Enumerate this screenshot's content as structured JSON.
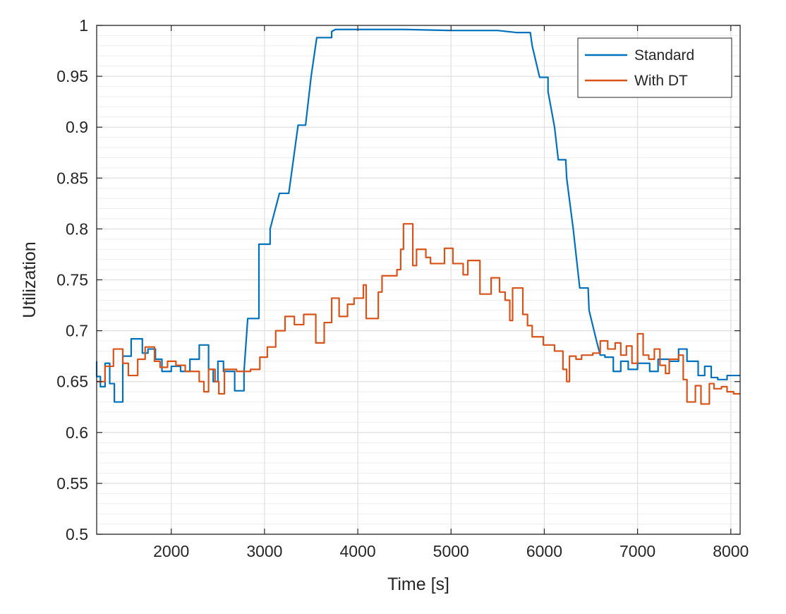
{
  "chart_data": {
    "type": "line",
    "xlabel": "Time [s]",
    "ylabel": "Utilization",
    "xlim": [
      1200,
      8100
    ],
    "ylim": [
      0.5,
      1.0
    ],
    "xticks": [
      2000,
      3000,
      4000,
      5000,
      6000,
      7000,
      8000
    ],
    "xtick_labels": [
      "2000",
      "3000",
      "4000",
      "5000",
      "6000",
      "7000",
      "8000"
    ],
    "yticks": [
      0.5,
      0.55,
      0.6,
      0.65,
      0.7,
      0.75,
      0.8,
      0.85,
      0.9,
      0.95,
      1.0
    ],
    "ytick_labels": [
      "0.5",
      "0.55",
      "0.6",
      "0.65",
      "0.7",
      "0.75",
      "0.8",
      "0.85",
      "0.9",
      "0.95",
      "1"
    ],
    "grid": true,
    "minor_grid": true,
    "legend_position": "top-right",
    "series": [
      {
        "name": "Standard",
        "color": "#0072BD",
        "points": [
          [
            1200,
            0.67
          ],
          [
            1200,
            0.655
          ],
          [
            1240,
            0.655
          ],
          [
            1240,
            0.645
          ],
          [
            1290,
            0.645
          ],
          [
            1290,
            0.668
          ],
          [
            1340,
            0.668
          ],
          [
            1340,
            0.648
          ],
          [
            1390,
            0.648
          ],
          [
            1390,
            0.63
          ],
          [
            1480,
            0.63
          ],
          [
            1480,
            0.675
          ],
          [
            1570,
            0.675
          ],
          [
            1570,
            0.692
          ],
          [
            1690,
            0.692
          ],
          [
            1690,
            0.678
          ],
          [
            1750,
            0.678
          ],
          [
            1750,
            0.682
          ],
          [
            1830,
            0.682
          ],
          [
            1830,
            0.672
          ],
          [
            1900,
            0.672
          ],
          [
            1900,
            0.66
          ],
          [
            2000,
            0.66
          ],
          [
            2000,
            0.665
          ],
          [
            2100,
            0.665
          ],
          [
            2100,
            0.66
          ],
          [
            2200,
            0.66
          ],
          [
            2200,
            0.672
          ],
          [
            2300,
            0.672
          ],
          [
            2300,
            0.686
          ],
          [
            2400,
            0.686
          ],
          [
            2400,
            0.662
          ],
          [
            2450,
            0.662
          ],
          [
            2450,
            0.65
          ],
          [
            2500,
            0.65
          ],
          [
            2500,
            0.67
          ],
          [
            2560,
            0.67
          ],
          [
            2560,
            0.66
          ],
          [
            2680,
            0.66
          ],
          [
            2680,
            0.641
          ],
          [
            2780,
            0.641
          ],
          [
            2780,
            0.66
          ],
          [
            2820,
            0.712
          ],
          [
            2940,
            0.712
          ],
          [
            2940,
            0.785
          ],
          [
            3060,
            0.785
          ],
          [
            3060,
            0.8
          ],
          [
            3160,
            0.835
          ],
          [
            3260,
            0.835
          ],
          [
            3290,
            0.855
          ],
          [
            3360,
            0.902
          ],
          [
            3440,
            0.902
          ],
          [
            3500,
            0.95
          ],
          [
            3560,
            0.988
          ],
          [
            3720,
            0.988
          ],
          [
            3720,
            0.994
          ],
          [
            3760,
            0.996
          ],
          [
            4500,
            0.996
          ],
          [
            5000,
            0.995
          ],
          [
            5500,
            0.995
          ],
          [
            5700,
            0.993
          ],
          [
            5850,
            0.993
          ],
          [
            5870,
            0.98
          ],
          [
            5950,
            0.949
          ],
          [
            6040,
            0.949
          ],
          [
            6040,
            0.935
          ],
          [
            6110,
            0.9
          ],
          [
            6150,
            0.868
          ],
          [
            6230,
            0.868
          ],
          [
            6240,
            0.85
          ],
          [
            6310,
            0.8
          ],
          [
            6380,
            0.742
          ],
          [
            6470,
            0.742
          ],
          [
            6480,
            0.72
          ],
          [
            6560,
            0.69
          ],
          [
            6600,
            0.676
          ],
          [
            6650,
            0.676
          ],
          [
            6650,
            0.674
          ],
          [
            6740,
            0.674
          ],
          [
            6740,
            0.66
          ],
          [
            6820,
            0.66
          ],
          [
            6820,
            0.67
          ],
          [
            6900,
            0.67
          ],
          [
            6900,
            0.662
          ],
          [
            7000,
            0.662
          ],
          [
            7000,
            0.668
          ],
          [
            7130,
            0.668
          ],
          [
            7130,
            0.66
          ],
          [
            7220,
            0.66
          ],
          [
            7220,
            0.672
          ],
          [
            7340,
            0.672
          ],
          [
            7340,
            0.67
          ],
          [
            7440,
            0.67
          ],
          [
            7440,
            0.682
          ],
          [
            7530,
            0.682
          ],
          [
            7530,
            0.67
          ],
          [
            7650,
            0.67
          ],
          [
            7650,
            0.656
          ],
          [
            7720,
            0.656
          ],
          [
            7720,
            0.665
          ],
          [
            7790,
            0.665
          ],
          [
            7790,
            0.654
          ],
          [
            7860,
            0.654
          ],
          [
            7860,
            0.652
          ],
          [
            7960,
            0.652
          ],
          [
            7960,
            0.656
          ],
          [
            8100,
            0.656
          ]
        ]
      },
      {
        "name": "With DT",
        "color": "#D95319",
        "points": [
          [
            1200,
            0.65
          ],
          [
            1290,
            0.65
          ],
          [
            1290,
            0.665
          ],
          [
            1380,
            0.665
          ],
          [
            1380,
            0.682
          ],
          [
            1480,
            0.682
          ],
          [
            1480,
            0.668
          ],
          [
            1540,
            0.668
          ],
          [
            1540,
            0.656
          ],
          [
            1640,
            0.656
          ],
          [
            1640,
            0.672
          ],
          [
            1720,
            0.672
          ],
          [
            1720,
            0.684
          ],
          [
            1820,
            0.684
          ],
          [
            1820,
            0.67
          ],
          [
            1880,
            0.67
          ],
          [
            1880,
            0.664
          ],
          [
            1960,
            0.664
          ],
          [
            1960,
            0.67
          ],
          [
            2050,
            0.67
          ],
          [
            2050,
            0.666
          ],
          [
            2150,
            0.666
          ],
          [
            2150,
            0.66
          ],
          [
            2300,
            0.66
          ],
          [
            2300,
            0.65
          ],
          [
            2350,
            0.65
          ],
          [
            2350,
            0.64
          ],
          [
            2400,
            0.64
          ],
          [
            2400,
            0.662
          ],
          [
            2470,
            0.662
          ],
          [
            2470,
            0.65
          ],
          [
            2510,
            0.65
          ],
          [
            2510,
            0.638
          ],
          [
            2570,
            0.638
          ],
          [
            2570,
            0.662
          ],
          [
            2700,
            0.662
          ],
          [
            2700,
            0.66
          ],
          [
            2850,
            0.66
          ],
          [
            2850,
            0.662
          ],
          [
            2950,
            0.662
          ],
          [
            2950,
            0.674
          ],
          [
            3030,
            0.674
          ],
          [
            3030,
            0.684
          ],
          [
            3120,
            0.684
          ],
          [
            3120,
            0.7
          ],
          [
            3220,
            0.7
          ],
          [
            3220,
            0.714
          ],
          [
            3320,
            0.714
          ],
          [
            3320,
            0.706
          ],
          [
            3420,
            0.706
          ],
          [
            3420,
            0.716
          ],
          [
            3550,
            0.716
          ],
          [
            3550,
            0.688
          ],
          [
            3640,
            0.688
          ],
          [
            3640,
            0.708
          ],
          [
            3720,
            0.708
          ],
          [
            3720,
            0.732
          ],
          [
            3800,
            0.732
          ],
          [
            3800,
            0.714
          ],
          [
            3890,
            0.714
          ],
          [
            3890,
            0.726
          ],
          [
            3960,
            0.726
          ],
          [
            3960,
            0.732
          ],
          [
            4060,
            0.732
          ],
          [
            4060,
            0.745
          ],
          [
            4090,
            0.745
          ],
          [
            4090,
            0.712
          ],
          [
            4220,
            0.712
          ],
          [
            4220,
            0.738
          ],
          [
            4260,
            0.738
          ],
          [
            4260,
            0.754
          ],
          [
            4420,
            0.754
          ],
          [
            4420,
            0.76
          ],
          [
            4460,
            0.76
          ],
          [
            4460,
            0.78
          ],
          [
            4490,
            0.78
          ],
          [
            4490,
            0.805
          ],
          [
            4590,
            0.805
          ],
          [
            4590,
            0.764
          ],
          [
            4630,
            0.764
          ],
          [
            4630,
            0.78
          ],
          [
            4730,
            0.78
          ],
          [
            4730,
            0.772
          ],
          [
            4780,
            0.772
          ],
          [
            4780,
            0.766
          ],
          [
            4930,
            0.766
          ],
          [
            4930,
            0.781
          ],
          [
            5020,
            0.781
          ],
          [
            5020,
            0.766
          ],
          [
            5130,
            0.766
          ],
          [
            5130,
            0.755
          ],
          [
            5180,
            0.755
          ],
          [
            5180,
            0.769
          ],
          [
            5310,
            0.769
          ],
          [
            5310,
            0.736
          ],
          [
            5430,
            0.736
          ],
          [
            5430,
            0.752
          ],
          [
            5520,
            0.752
          ],
          [
            5520,
            0.738
          ],
          [
            5580,
            0.738
          ],
          [
            5580,
            0.73
          ],
          [
            5630,
            0.73
          ],
          [
            5630,
            0.71
          ],
          [
            5660,
            0.71
          ],
          [
            5660,
            0.742
          ],
          [
            5770,
            0.742
          ],
          [
            5770,
            0.716
          ],
          [
            5820,
            0.716
          ],
          [
            5820,
            0.705
          ],
          [
            5870,
            0.705
          ],
          [
            5870,
            0.694
          ],
          [
            5990,
            0.694
          ],
          [
            5990,
            0.686
          ],
          [
            6110,
            0.686
          ],
          [
            6110,
            0.68
          ],
          [
            6200,
            0.68
          ],
          [
            6200,
            0.662
          ],
          [
            6240,
            0.662
          ],
          [
            6240,
            0.65
          ],
          [
            6270,
            0.65
          ],
          [
            6270,
            0.675
          ],
          [
            6340,
            0.675
          ],
          [
            6340,
            0.672
          ],
          [
            6400,
            0.672
          ],
          [
            6400,
            0.676
          ],
          [
            6520,
            0.676
          ],
          [
            6520,
            0.678
          ],
          [
            6600,
            0.678
          ],
          [
            6600,
            0.69
          ],
          [
            6680,
            0.69
          ],
          [
            6680,
            0.682
          ],
          [
            6760,
            0.682
          ],
          [
            6760,
            0.688
          ],
          [
            6820,
            0.688
          ],
          [
            6820,
            0.676
          ],
          [
            6880,
            0.676
          ],
          [
            6880,
            0.685
          ],
          [
            6940,
            0.685
          ],
          [
            6940,
            0.668
          ],
          [
            7000,
            0.668
          ],
          [
            7000,
            0.697
          ],
          [
            7060,
            0.697
          ],
          [
            7060,
            0.676
          ],
          [
            7120,
            0.676
          ],
          [
            7120,
            0.672
          ],
          [
            7180,
            0.672
          ],
          [
            7180,
            0.682
          ],
          [
            7240,
            0.682
          ],
          [
            7240,
            0.666
          ],
          [
            7300,
            0.666
          ],
          [
            7300,
            0.658
          ],
          [
            7340,
            0.658
          ],
          [
            7340,
            0.672
          ],
          [
            7440,
            0.672
          ],
          [
            7440,
            0.676
          ],
          [
            7490,
            0.676
          ],
          [
            7490,
            0.652
          ],
          [
            7530,
            0.652
          ],
          [
            7530,
            0.63
          ],
          [
            7620,
            0.63
          ],
          [
            7620,
            0.646
          ],
          [
            7680,
            0.646
          ],
          [
            7680,
            0.628
          ],
          [
            7770,
            0.628
          ],
          [
            7770,
            0.648
          ],
          [
            7820,
            0.648
          ],
          [
            7820,
            0.643
          ],
          [
            7900,
            0.643
          ],
          [
            7900,
            0.645
          ],
          [
            7960,
            0.645
          ],
          [
            7960,
            0.64
          ],
          [
            8030,
            0.64
          ],
          [
            8030,
            0.638
          ],
          [
            8100,
            0.638
          ]
        ]
      }
    ]
  }
}
